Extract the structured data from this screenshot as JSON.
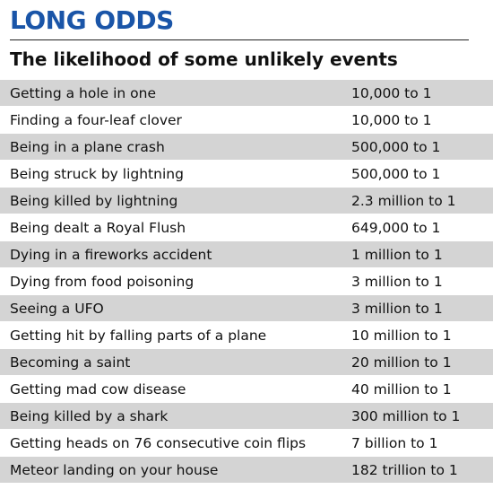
{
  "title": "LONG ODDS",
  "subtitle": "The likelihood of some unlikely events",
  "rows": [
    {
      "event": "Getting a hole in one",
      "odds": "10,000 to 1"
    },
    {
      "event": "Finding a four-leaf clover",
      "odds": "10,000 to 1"
    },
    {
      "event": "Being in a plane crash",
      "odds": "500,000 to 1"
    },
    {
      "event": "Being struck by lightning",
      "odds": "500,000 to 1"
    },
    {
      "event": "Being killed by lightning",
      "odds": "2.3 million to 1"
    },
    {
      "event": "Being dealt a Royal Flush",
      "odds": "649,000 to 1"
    },
    {
      "event": "Dying in a fireworks accident",
      "odds": "1 million to 1"
    },
    {
      "event": "Dying from food poisoning",
      "odds": "3 million to 1"
    },
    {
      "event": "Seeing a UFO",
      "odds": "3 million to 1"
    },
    {
      "event": "Getting hit by falling parts of a plane",
      "odds": "10 million to 1"
    },
    {
      "event": "Becoming a saint",
      "odds": "20 million to 1"
    },
    {
      "event": "Getting mad cow disease",
      "odds": "40 million to 1"
    },
    {
      "event": "Being killed by a shark",
      "odds": "300 million to 1"
    },
    {
      "event": "Getting heads on 76 consecutive coin flips",
      "odds": "7 billion to 1"
    },
    {
      "event": "Meteor landing on your house",
      "odds": "182 trillion to 1"
    }
  ],
  "colors": {
    "title": "#1a55a8",
    "shaded_row": "#d4d4d4",
    "text": "#111111"
  }
}
